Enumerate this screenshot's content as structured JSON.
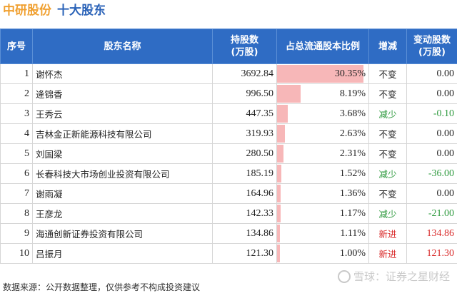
{
  "title": {
    "company": "中研股份",
    "topic": "十大股东"
  },
  "table": {
    "headers": {
      "index": "序号",
      "name": "股东名称",
      "holding_line1": "持股数",
      "holding_line2": "(万股)",
      "ratio": "占总流通股本比例",
      "change": "增减",
      "delta_line1": "变动股数",
      "delta_line2": "(万股)"
    },
    "rows": [
      {
        "index": "1",
        "name": "谢怀杰",
        "holding": "3692.84",
        "ratio": "30.35%",
        "ratio_value": 30.35,
        "change": "不变",
        "change_type": "same",
        "delta": "0.00"
      },
      {
        "index": "2",
        "name": "逄锦香",
        "holding": "996.50",
        "ratio": "8.19%",
        "ratio_value": 8.19,
        "change": "不变",
        "change_type": "same",
        "delta": "0.00"
      },
      {
        "index": "3",
        "name": "王秀云",
        "holding": "447.35",
        "ratio": "3.68%",
        "ratio_value": 3.68,
        "change": "减少",
        "change_type": "down",
        "delta": "-0.10"
      },
      {
        "index": "4",
        "name": "吉林金正新能源科技有限公司",
        "holding": "319.93",
        "ratio": "2.63%",
        "ratio_value": 2.63,
        "change": "不变",
        "change_type": "same",
        "delta": "0.00"
      },
      {
        "index": "5",
        "name": "刘国梁",
        "holding": "280.50",
        "ratio": "2.31%",
        "ratio_value": 2.31,
        "change": "不变",
        "change_type": "same",
        "delta": "0.00"
      },
      {
        "index": "6",
        "name": "长春科技大市场创业投资有限公司",
        "holding": "185.19",
        "ratio": "1.52%",
        "ratio_value": 1.52,
        "change": "减少",
        "change_type": "down",
        "delta": "-36.00"
      },
      {
        "index": "7",
        "name": "谢雨凝",
        "holding": "164.96",
        "ratio": "1.36%",
        "ratio_value": 1.36,
        "change": "不变",
        "change_type": "same",
        "delta": "0.00"
      },
      {
        "index": "8",
        "name": "王彦龙",
        "holding": "142.33",
        "ratio": "1.17%",
        "ratio_value": 1.17,
        "change": "减少",
        "change_type": "down",
        "delta": "-21.00"
      },
      {
        "index": "9",
        "name": "海通创新证券投资有限公司",
        "holding": "134.86",
        "ratio": "1.11%",
        "ratio_value": 1.11,
        "change": "新进",
        "change_type": "new",
        "delta": "134.86"
      },
      {
        "index": "10",
        "name": "吕振月",
        "holding": "121.30",
        "ratio": "1.00%",
        "ratio_value": 1.0,
        "change": "新进",
        "change_type": "new",
        "delta": "121.30"
      }
    ]
  },
  "footer": {
    "source": "数据来源：公开数据整理，仅供参考不构成投资建议"
  },
  "watermark": {
    "brand": "雪球：证券之星财经"
  },
  "colors": {
    "header_bg": "#2f6cc4",
    "title_company": "#f0a030",
    "title_topic": "#2b63b8",
    "bar": "#f7b7b8",
    "decrease": "#2e9a3e",
    "new": "#d92b2b"
  }
}
